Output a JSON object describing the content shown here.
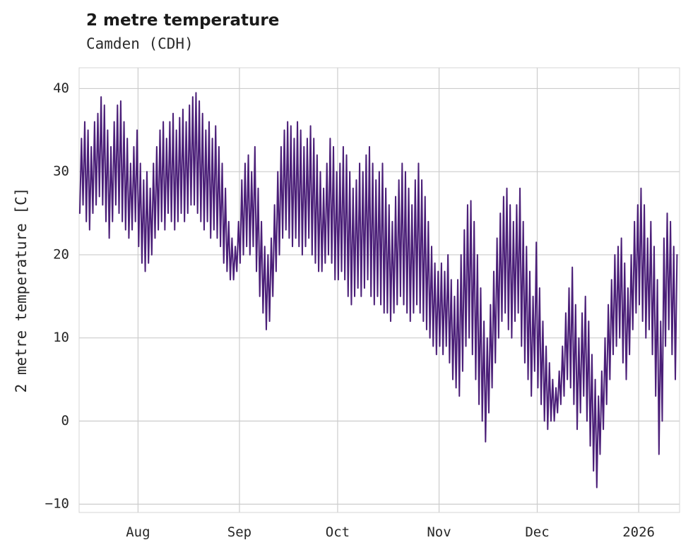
{
  "chart_data": {
    "type": "line",
    "title": "2 metre temperature",
    "subtitle": "Camden (CDH)",
    "ylabel": "2 metre temperature [C]",
    "xlabel": "",
    "ylim": [
      -11,
      42.5
    ],
    "xlim": [
      0,
      183.5
    ],
    "grid": true,
    "legend": "none",
    "y_ticks": [
      {
        "label": "−10",
        "value": -10
      },
      {
        "label": "0",
        "value": 0
      },
      {
        "label": "10",
        "value": 10
      },
      {
        "label": "20",
        "value": 20
      },
      {
        "label": "30",
        "value": 30
      },
      {
        "label": "40",
        "value": 40
      }
    ],
    "x_ticks": [
      {
        "label": "Aug",
        "day": 18
      },
      {
        "label": "Sep",
        "day": 49
      },
      {
        "label": "Oct",
        "day": 79
      },
      {
        "label": "Nov",
        "day": 110
      },
      {
        "label": "Dec",
        "day": 140
      },
      {
        "label": "2026",
        "day": 171
      }
    ],
    "series": {
      "name": "2 metre temperature",
      "color": "#4b1f78",
      "start_date": "Jul 14",
      "end_date": "Jan 12",
      "units": "C",
      "daily_min": [
        25,
        26,
        24,
        23,
        25,
        26,
        27,
        26,
        24,
        22,
        24,
        26,
        25,
        24,
        23,
        22,
        23,
        24,
        21,
        19,
        18,
        19,
        20,
        22,
        23,
        24,
        23,
        25,
        24,
        23,
        24,
        25,
        24,
        25,
        26,
        26,
        25,
        24,
        23,
        24,
        22,
        23,
        22,
        21,
        19,
        18,
        17,
        17,
        18,
        19,
        20,
        21,
        20,
        21,
        18,
        15,
        13,
        11,
        12,
        15,
        18,
        20,
        22,
        23,
        22,
        21,
        22,
        21,
        20,
        21,
        22,
        20,
        19,
        18,
        18,
        19,
        20,
        19,
        17,
        17,
        18,
        17,
        15,
        14,
        15,
        16,
        15,
        16,
        17,
        15,
        14,
        15,
        14,
        13,
        13,
        12,
        13,
        14,
        15,
        14,
        13,
        12,
        13,
        14,
        13,
        12,
        11,
        10,
        9,
        8,
        9,
        8,
        9,
        7,
        5,
        4,
        3,
        6,
        9,
        10,
        8,
        5,
        2,
        0,
        -2.5,
        1,
        4,
        7,
        10,
        12,
        13,
        11,
        10,
        12,
        13,
        9,
        7,
        5,
        3,
        6,
        4,
        2,
        0,
        -1,
        0,
        0,
        1,
        2,
        3,
        5,
        4,
        2,
        -1,
        1,
        3,
        0,
        -3,
        -6,
        -8,
        -4,
        -1,
        2,
        5,
        8,
        9,
        10,
        7,
        5,
        8,
        11,
        13,
        14,
        12,
        10,
        11,
        8,
        3,
        -4,
        0,
        9,
        11,
        8,
        5
      ],
      "daily_max": [
        34,
        36,
        35,
        33,
        36,
        37,
        39,
        38,
        35,
        33,
        36,
        38,
        38.5,
        36,
        34,
        31,
        33,
        35,
        31,
        29,
        30,
        28,
        31,
        33,
        35,
        36,
        34,
        36,
        37,
        35,
        36.5,
        37.5,
        36,
        38,
        39,
        39.5,
        38.5,
        37,
        35,
        36,
        34,
        35.5,
        33,
        31,
        28,
        24,
        22,
        21,
        24,
        29,
        31,
        32,
        30,
        33,
        28,
        24,
        21,
        20,
        22,
        26,
        30,
        33,
        35,
        36,
        35.5,
        34,
        36,
        35,
        33,
        34,
        35.5,
        34,
        32,
        30,
        28,
        31,
        34,
        33,
        30,
        31,
        33,
        32,
        30,
        28,
        29,
        31,
        30,
        32,
        33,
        31,
        29,
        30,
        31,
        28,
        26,
        24,
        27,
        29,
        31,
        30,
        28,
        26,
        29,
        31,
        29,
        27,
        24,
        21,
        19,
        18,
        19,
        18,
        20,
        17,
        15,
        17,
        20,
        23,
        26,
        26.5,
        24,
        20,
        16,
        12,
        10,
        14,
        18,
        22,
        25,
        27,
        28,
        26,
        24,
        26,
        28,
        24,
        21,
        18,
        15,
        21.5,
        16,
        12,
        9,
        7,
        5,
        4,
        6,
        9,
        13,
        16,
        18.5,
        14,
        10,
        13,
        15,
        12,
        8,
        5,
        3,
        6,
        10,
        14,
        17,
        20,
        21,
        22,
        19,
        16,
        20,
        24,
        26,
        28,
        26,
        22,
        24,
        21,
        17,
        12,
        22,
        25,
        24,
        21,
        20
      ]
    }
  }
}
